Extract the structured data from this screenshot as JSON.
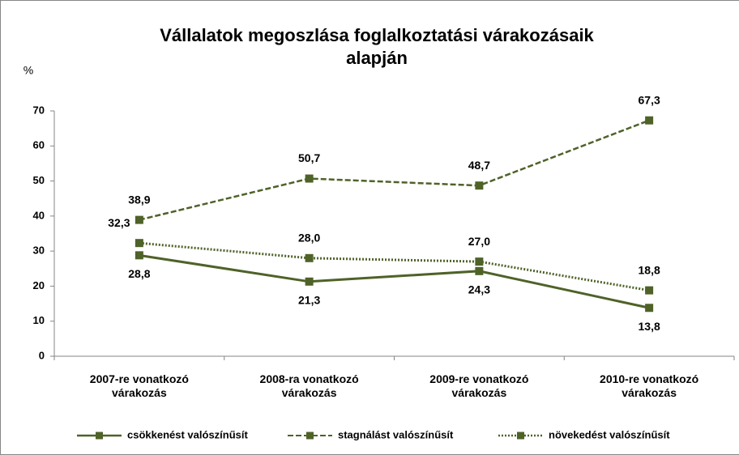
{
  "chart_data": {
    "type": "line",
    "title": "Vállalatok megoszlása foglalkoztatási várakozásaik\nalapján",
    "y_label": "%",
    "categories": [
      "2007-re vonatkozó\nvárakozás",
      "2008-ra vonatkozó\nvárakozás",
      "2009-re vonatkozó\nvárakozás",
      "2010-re vonatkozó\nvárakozás"
    ],
    "series": [
      {
        "name": "csökkenést valószínűsít",
        "color": "#4f6228",
        "dash": "solid",
        "values": [
          28.8,
          21.3,
          24.3,
          13.8
        ],
        "value_labels": [
          "28,8",
          "21,3",
          "24,3",
          "13,8"
        ]
      },
      {
        "name": "stagnálást valószínűsít",
        "color": "#4f6228",
        "dash": "dashed",
        "values": [
          38.9,
          50.7,
          48.7,
          67.3
        ],
        "value_labels": [
          "38,9",
          "50,7",
          "48,7",
          "67,3"
        ]
      },
      {
        "name": "növekedést valószínűsít",
        "color": "#4f6228",
        "dash": "dotted",
        "values": [
          32.3,
          28.0,
          27.0,
          18.8
        ],
        "value_labels": [
          "32,3",
          "28,0",
          "27,0",
          "18,8"
        ]
      }
    ],
    "ylim": [
      0,
      70
    ],
    "yticks": [
      0,
      10,
      20,
      30,
      40,
      50,
      60,
      70
    ],
    "grid": false,
    "legend": "bottom"
  }
}
